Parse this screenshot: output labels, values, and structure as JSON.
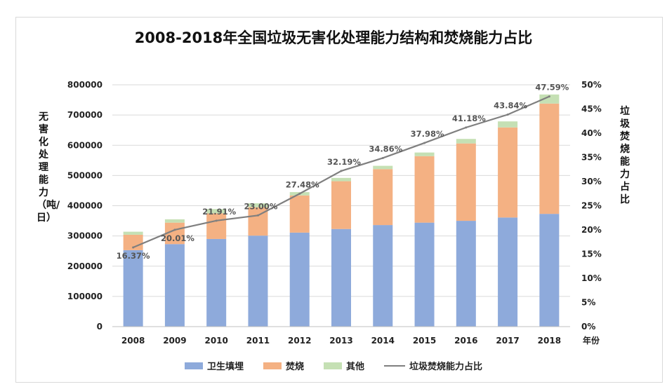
{
  "chart_data": {
    "type": "bar",
    "title": "2008-2018年全国垃圾无害化处理能力结构和焚烧能力占比",
    "xlabel": "年份",
    "ylabel": "无害化处理能力（吨/日）",
    "y2label": "垃圾焚烧能力占比",
    "ylim": [
      0,
      800000
    ],
    "y2lim": [
      0,
      50
    ],
    "y_ticks": [
      "0",
      "100000",
      "200000",
      "300000",
      "400000",
      "500000",
      "600000",
      "700000",
      "800000"
    ],
    "y2_ticks": [
      "0%",
      "5%",
      "10%",
      "15%",
      "20%",
      "25%",
      "30%",
      "35%",
      "40%",
      "45%",
      "50%"
    ],
    "categories": [
      "2008",
      "2009",
      "2010",
      "2011",
      "2012",
      "2013",
      "2014",
      "2015",
      "2016",
      "2017",
      "2018"
    ],
    "series": [
      {
        "name": "卫生填埋",
        "type": "stacked-bar",
        "color": "#8eaadb",
        "values": [
          253000,
          273000,
          290000,
          301000,
          311000,
          323000,
          336000,
          344000,
          350000,
          361000,
          373000
        ]
      },
      {
        "name": "焚烧",
        "type": "stacked-bar",
        "color": "#f4b183",
        "values": [
          51000,
          71000,
          85000,
          94000,
          123000,
          158000,
          185000,
          220000,
          256000,
          298000,
          365000
        ]
      },
      {
        "name": "其他",
        "type": "stacked-bar",
        "color": "#c5e0b4",
        "values": [
          10000,
          11000,
          14000,
          13000,
          11000,
          11000,
          11000,
          12000,
          15000,
          20000,
          30000
        ]
      },
      {
        "name": "垃圾焚烧能力占比",
        "type": "line",
        "axis": "right",
        "color": "#7f7f7f",
        "values": [
          16.37,
          20.01,
          21.91,
          23.0,
          27.48,
          32.19,
          34.86,
          37.98,
          41.18,
          43.84,
          47.59
        ],
        "labels": [
          "16.37%",
          "20.01%",
          "21.91%",
          "23.00%",
          "27.48%",
          "32.19%",
          "34.86%",
          "37.98%",
          "41.18%",
          "43.84%",
          "47.59%"
        ]
      }
    ],
    "grid": true,
    "legend": "bottom"
  }
}
